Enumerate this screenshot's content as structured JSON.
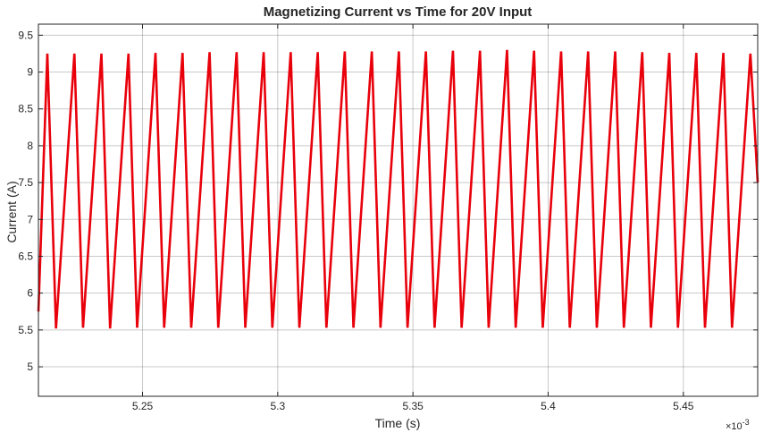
{
  "chart_data": {
    "type": "line",
    "title": "Magnetizing Current vs Time for 20V Input",
    "xlabel": "Time (s)",
    "ylabel": "Current (A)",
    "x_exponent_label": "×10",
    "x_exponent_power": "-3",
    "xlim": [
      5.2115,
      5.4775
    ],
    "ylim": [
      4.6,
      9.65
    ],
    "xticks": [
      5.25,
      5.3,
      5.35,
      5.4,
      5.45
    ],
    "xtick_labels": [
      "5.25",
      "5.3",
      "5.35",
      "5.4",
      "5.45"
    ],
    "yticks": [
      5,
      5.5,
      6,
      6.5,
      7,
      7.5,
      8,
      8.5,
      9,
      9.5
    ],
    "ytick_labels": [
      "5",
      "5.5",
      "6",
      "6.5",
      "7",
      "7.5",
      "8",
      "8.5",
      "9",
      "9.5"
    ],
    "grid": true,
    "line_color": "#e8000b",
    "series": [
      {
        "x": [
          5.2115,
          5.2148,
          5.218,
          5.2248,
          5.228,
          5.2348,
          5.238,
          5.2448,
          5.248,
          5.2548,
          5.258,
          5.2648,
          5.268,
          5.2748,
          5.278,
          5.2848,
          5.288,
          5.2948,
          5.298,
          5.3048,
          5.308,
          5.3148,
          5.318,
          5.3248,
          5.328,
          5.3348,
          5.338,
          5.3448,
          5.348,
          5.3548,
          5.358,
          5.3648,
          5.368,
          5.3748,
          5.378,
          5.3848,
          5.388,
          5.3948,
          5.398,
          5.4048,
          5.408,
          5.4148,
          5.418,
          5.4248,
          5.428,
          5.4348,
          5.438,
          5.4448,
          5.448,
          5.4548,
          5.458,
          5.4648,
          5.468,
          5.4748,
          5.4775
        ],
        "y": [
          5.75,
          9.25,
          5.52,
          9.25,
          5.53,
          9.25,
          5.52,
          9.25,
          5.53,
          9.26,
          5.53,
          9.26,
          5.53,
          9.27,
          5.53,
          9.27,
          5.53,
          9.27,
          5.53,
          9.27,
          5.53,
          9.27,
          5.53,
          9.28,
          5.53,
          9.28,
          5.53,
          9.28,
          5.53,
          9.28,
          5.53,
          9.29,
          5.53,
          9.29,
          5.53,
          9.3,
          5.53,
          9.29,
          5.53,
          9.28,
          5.53,
          9.28,
          5.53,
          9.28,
          5.53,
          9.27,
          5.53,
          9.26,
          5.53,
          9.26,
          5.53,
          9.26,
          5.53,
          9.25,
          7.5
        ]
      }
    ]
  }
}
